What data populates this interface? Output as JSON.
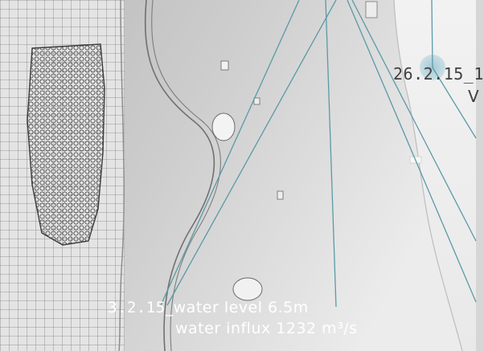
{
  "map": {
    "background": "#d0d0d0",
    "water_color": "#cfcfcf",
    "city_color": "#4a4a4a",
    "leader_line_color": "#5a9aa6",
    "callouts": [
      {
        "date": "3.2.15",
        "line1": "_water level 6.5m",
        "line2": "water influx 1232 m³/s",
        "text_color": "#ffffff"
      },
      {
        "date": "26.2.15",
        "line1": "_1",
        "line2": "V",
        "text_color": "#3f3f3f"
      }
    ]
  }
}
